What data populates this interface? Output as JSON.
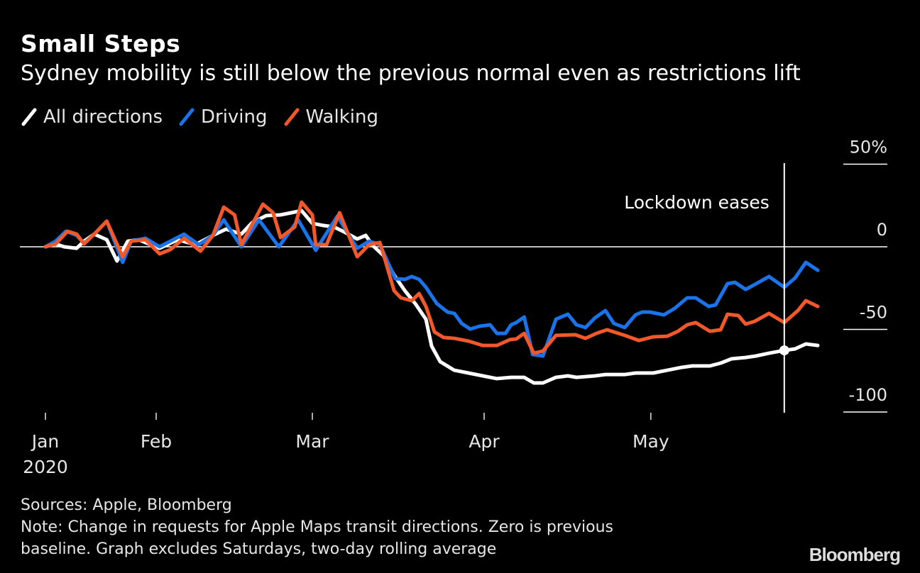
{
  "header": {
    "title": "Small Steps",
    "subtitle": "Sydney mobility is still below the previous normal even as restrictions lift"
  },
  "footer": {
    "sources": "Sources: Apple, Bloomberg",
    "note_line1": "Note: Change in requests for Apple Maps transit directions. Zero is previous",
    "note_line2": "baseline. Graph excludes Saturdays, two-day rolling average",
    "logo": "Bloomberg"
  },
  "chart_data": {
    "type": "line",
    "title": "Small Steps",
    "subtitle": "Sydney mobility is still below the previous normal even as restrictions lift",
    "xlabel": "",
    "ylabel": "",
    "x_unit": "data-point index from series start (Saturdays excluded)",
    "xlim": [
      0,
      136
    ],
    "ylim": [
      -100,
      50
    ],
    "y_ticks": [
      {
        "value": 50,
        "label": "50%"
      },
      {
        "value": 0,
        "label": "0"
      },
      {
        "value": -50,
        "label": "-50"
      },
      {
        "value": -100,
        "label": "-100"
      }
    ],
    "x_ticks": [
      {
        "value": 0,
        "label": "Jan",
        "sublabel": "2020"
      },
      {
        "value": 19.5,
        "label": "Feb"
      },
      {
        "value": 47,
        "label": "Mar"
      },
      {
        "value": 77.25,
        "label": "Apr"
      },
      {
        "value": 106.6,
        "label": "May"
      }
    ],
    "grid": false,
    "zero_line": true,
    "legend": "top-left",
    "annotation": {
      "label": "Lockdown eases",
      "x": 130.1,
      "marker_series": "All directions",
      "marker_value": -62.7
    },
    "series": [
      {
        "name": "All directions",
        "color": "#ffffff",
        "x": [
          0,
          1.8,
          3.3,
          5.5,
          6.8,
          8.6,
          10.8,
          12.6,
          14.5,
          16.4,
          20.1,
          23.3,
          26.4,
          29.5,
          31.8,
          34.5,
          36.4,
          38.9,
          41.4,
          43.3,
          45.1,
          47,
          48.9,
          50.8,
          52.6,
          54.9,
          56.4,
          57.6,
          59.5,
          61.4,
          63.3,
          65.1,
          67,
          68,
          69.5,
          72,
          74.5,
          77,
          79.5,
          82,
          84.3,
          86,
          87.6,
          89.9,
          92,
          93.5,
          96.8,
          98.6,
          102,
          103.9,
          107,
          109.5,
          112,
          113.9,
          117,
          118.9,
          120.8,
          123.3,
          125.1,
          127.4,
          130.1,
          132,
          133.9,
          136
        ],
        "values": [
          0,
          1.7,
          0,
          -0.9,
          3.4,
          7.7,
          4.3,
          -8.6,
          3.4,
          4.3,
          -0.9,
          4.3,
          1.3,
          6.9,
          10.7,
          7.7,
          14.6,
          18.9,
          19.3,
          20.6,
          21.9,
          14.2,
          12.9,
          12,
          9,
          4.7,
          6.9,
          0.9,
          -5.2,
          -17.2,
          -26.6,
          -34.3,
          -43.8,
          -60.1,
          -69.5,
          -74.7,
          -76.4,
          -78.1,
          -79.8,
          -79,
          -79,
          -82.4,
          -82.4,
          -79,
          -78.1,
          -79,
          -78.1,
          -77.3,
          -77.3,
          -76.4,
          -76.4,
          -74.7,
          -73,
          -72.1,
          -72.1,
          -70.4,
          -67.8,
          -67,
          -66.1,
          -64.4,
          -62.7,
          -61.8,
          -58.8,
          -59.7
        ]
      },
      {
        "name": "Driving",
        "color": "#1a73e8",
        "x": [
          0,
          1.8,
          3.6,
          5.5,
          6.8,
          8.6,
          10.8,
          13.6,
          15.1,
          17.6,
          20.1,
          24.4,
          27,
          29.5,
          31.4,
          34.5,
          37.6,
          41.1,
          44.5,
          47.6,
          51.4,
          54.9,
          57,
          58.9,
          61.6,
          63.3,
          64.5,
          65.8,
          67,
          68.9,
          70.8,
          72,
          73.3,
          74.8,
          76.4,
          78.3,
          79.5,
          81,
          82,
          82.9,
          84.3,
          85.8,
          87.6,
          89.9,
          92,
          93.5,
          95.1,
          96.8,
          98.6,
          100.1,
          102,
          103.9,
          105.1,
          106.4,
          108.9,
          110.8,
          113,
          114.5,
          116.8,
          118,
          120.1,
          121.4,
          123.3,
          124.5,
          127.4,
          130.1,
          132,
          133.9,
          136
        ],
        "values": [
          0,
          3.4,
          9.4,
          6.9,
          2.1,
          7.7,
          15.5,
          -9.4,
          3.4,
          5.2,
          0,
          7.7,
          1.3,
          6.9,
          16.3,
          0,
          16.3,
          0,
          16.3,
          -2.1,
          18.5,
          -0.9,
          3.4,
          1.3,
          -19.3,
          -19.7,
          -18,
          -19.7,
          -24.5,
          -34.3,
          -39.5,
          -40.3,
          -46.4,
          -49.8,
          -48.1,
          -47.2,
          -52.4,
          -52.4,
          -47.2,
          -45.9,
          -42.5,
          -65.2,
          -66.1,
          -43.8,
          -40.8,
          -47.2,
          -48.9,
          -42.9,
          -38.6,
          -46.4,
          -48.9,
          -41.2,
          -39.5,
          -39.5,
          -41.2,
          -37.3,
          -30.9,
          -30.9,
          -36.1,
          -35.2,
          -22.3,
          -21.5,
          -25.8,
          -23.6,
          -18,
          -24.5,
          -18.9,
          -9.4,
          -14.2
        ]
      },
      {
        "name": "Walking",
        "color": "#f2582a",
        "x": [
          0,
          1.8,
          3.9,
          5.5,
          6.8,
          8.6,
          10.8,
          13.6,
          15.1,
          17.6,
          20.1,
          22,
          24.4,
          27.3,
          29.5,
          31.4,
          33.3,
          34.5,
          38.3,
          40.1,
          41.4,
          43.9,
          45.1,
          47,
          47.6,
          49.5,
          51.8,
          54.9,
          57,
          58.9,
          61.4,
          62.6,
          64.5,
          65.8,
          67,
          68.5,
          70.1,
          72,
          74.5,
          77,
          79.5,
          81.8,
          82.9,
          84.3,
          86,
          87.6,
          89.9,
          93.3,
          95.1,
          97,
          98.9,
          102,
          104.5,
          107,
          109.5,
          111.4,
          113,
          114.5,
          117,
          118.9,
          120.1,
          122,
          123.3,
          124.9,
          127.4,
          130.1,
          132.5,
          133.9,
          136
        ],
        "values": [
          0,
          1.7,
          9.4,
          7.7,
          1.7,
          7.7,
          15.5,
          -6,
          3.4,
          4.3,
          -4.3,
          -1.7,
          5.2,
          -2.6,
          6.9,
          24,
          19.3,
          1.3,
          25.8,
          20.6,
          5.6,
          12,
          27,
          19.3,
          1.3,
          1.3,
          20.6,
          -6,
          1.3,
          2.6,
          -26.6,
          -30.9,
          -32.6,
          -28.3,
          -36.1,
          -51.5,
          -54.9,
          -55.4,
          -57.1,
          -59.7,
          -59.7,
          -56.2,
          -55.8,
          -52.4,
          -64.4,
          -63.1,
          -53.6,
          -53.2,
          -55.4,
          -52.4,
          -50.2,
          -53.6,
          -56.7,
          -54.5,
          -54.1,
          -51.1,
          -47.2,
          -45.9,
          -51.1,
          -50.2,
          -40.8,
          -41.6,
          -46.8,
          -45.1,
          -40.3,
          -45.9,
          -38.6,
          -32.6,
          -36.1
        ]
      }
    ]
  }
}
